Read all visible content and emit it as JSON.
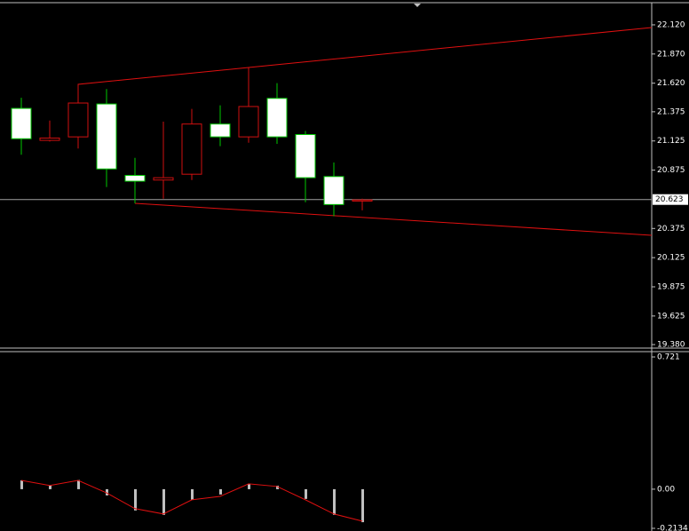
{
  "chart_data": [
    {
      "type": "candlestick",
      "open": [
        21.144,
        21.15,
        21.45,
        20.885,
        20.78,
        20.81,
        21.27,
        21.16,
        21.42,
        21.16,
        20.81,
        20.58,
        20.62
      ],
      "high": [
        21.495,
        21.3,
        21.61,
        21.57,
        20.98,
        21.29,
        21.4,
        21.43,
        21.75,
        21.62,
        21.21,
        20.94,
        20.63
      ],
      "low": [
        21.007,
        21.12,
        21.06,
        20.73,
        20.59,
        20.63,
        20.79,
        21.08,
        21.11,
        21.1,
        20.6,
        20.48,
        20.53
      ],
      "close": [
        21.404,
        21.13,
        21.16,
        21.442,
        20.83,
        20.79,
        20.84,
        21.27,
        21.16,
        21.49,
        21.18,
        20.82,
        20.61
      ],
      "up_color": "#00c800",
      "down_color": "#d01010",
      "ylim": [
        19.35,
        22.31
      ],
      "yticks": [
        {
          "value": 22.12,
          "label": "22.120"
        },
        {
          "value": 21.87,
          "label": "21.870"
        },
        {
          "value": 21.62,
          "label": "21.620"
        },
        {
          "value": 21.375,
          "label": "21.375"
        },
        {
          "value": 21.125,
          "label": "21.125"
        },
        {
          "value": 20.875,
          "label": "20.875"
        },
        {
          "value": 20.375,
          "label": "20.375"
        },
        {
          "value": 20.125,
          "label": "20.125"
        },
        {
          "value": 19.875,
          "label": "19.875"
        },
        {
          "value": 19.625,
          "label": "19.625"
        },
        {
          "value": 19.38,
          "label": "19.380"
        }
      ],
      "current_price": 20.623
    },
    {
      "type": "bar",
      "histogram": {
        "color": "#c0c0c0",
        "values": [
          0.048,
          0.02,
          0.05,
          -0.034,
          -0.116,
          -0.14,
          -0.058,
          -0.029,
          0.029,
          0.019,
          -0.053,
          -0.14,
          -0.18
        ]
      },
      "signal": {
        "color": "#e01010",
        "values": [
          0.048,
          0.02,
          0.048,
          -0.02,
          -0.106,
          -0.135,
          -0.058,
          -0.039,
          0.029,
          0.015,
          -0.058,
          -0.135,
          -0.174
        ]
      },
      "ylim": [
        -0.228,
        0.75
      ],
      "yticks": [
        0.721,
        {
          "value": 0,
          "label": "0.00"
        },
        -0.2134
      ]
    }
  ]
}
